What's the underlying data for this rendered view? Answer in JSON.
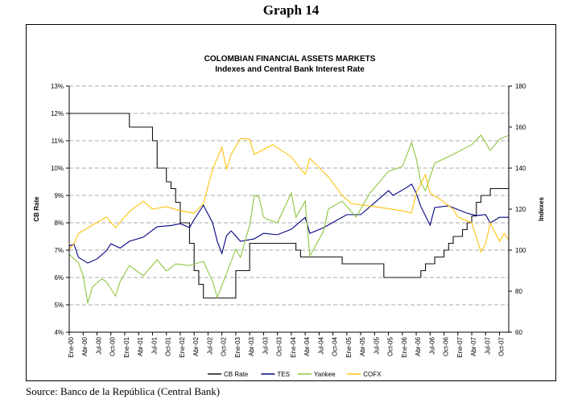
{
  "graph_label": "Graph 14",
  "source": "Source: Banco de la República (Central Bank)",
  "chart_data": {
    "type": "line",
    "title": "COLOMBIAN FINANCIAL ASSETS MARKETS",
    "subtitle": "Indexes and Central Bank Interest Rate",
    "ylabel": "CB Rate",
    "y2label": "Indexes",
    "ylim": [
      4,
      13
    ],
    "y2lim": [
      60,
      180
    ],
    "yticks": [
      "4%",
      "5%",
      "6%",
      "7%",
      "8%",
      "9%",
      "10%",
      "11%",
      "12%",
      "13%"
    ],
    "y2ticks": [
      "60",
      "80",
      "100",
      "120",
      "140",
      "160",
      "180"
    ],
    "xlim": [
      "2000-01",
      "2007-12"
    ],
    "xticks": [
      "Ene-00",
      "Abr-00",
      "Jul-00",
      "Oct-00",
      "Ene-01",
      "Abr-01",
      "Jul-01",
      "Oct-01",
      "Ene-02",
      "Abr-02",
      "Jul-02",
      "Oct-02",
      "Ene-03",
      "Abr-03",
      "Jul-03",
      "Oct-03",
      "Ene-04",
      "Abr-04",
      "Jul-04",
      "Oct-04",
      "Ene-05",
      "Abr-05",
      "Jul-05",
      "Oct-05",
      "Ene-06",
      "Abr-06",
      "Jul-06",
      "Oct-06",
      "Ene-07",
      "Abr-07",
      "Jul-07",
      "Oct-07"
    ],
    "grid": "horizontal dashed",
    "legend": "bottom",
    "series": [
      {
        "name": "CB Rate",
        "axis": "left",
        "step": true,
        "color": "#111111",
        "points": [
          [
            "2000-01",
            12
          ],
          [
            "2001-02",
            11.5
          ],
          [
            "2001-07",
            11
          ],
          [
            "2001-08",
            10
          ],
          [
            "2001-10",
            9.5
          ],
          [
            "2001-11",
            9.25
          ],
          [
            "2001-12",
            8.75
          ],
          [
            "2002-01",
            8
          ],
          [
            "2002-03",
            7.25
          ],
          [
            "2002-04",
            6.25
          ],
          [
            "2002-05",
            5.75
          ],
          [
            "2002-06",
            5.25
          ],
          [
            "2003-01",
            6.25
          ],
          [
            "2003-04",
            7.25
          ],
          [
            "2004-02",
            7
          ],
          [
            "2004-03",
            6.75
          ],
          [
            "2004-12",
            6.5
          ],
          [
            "2005-09",
            6
          ],
          [
            "2006-05",
            6.25
          ],
          [
            "2006-06",
            6.5
          ],
          [
            "2006-08",
            6.75
          ],
          [
            "2006-10",
            7
          ],
          [
            "2006-11",
            7.25
          ],
          [
            "2006-12",
            7.5
          ],
          [
            "2007-02",
            7.75
          ],
          [
            "2007-03",
            8
          ],
          [
            "2007-04",
            8.25
          ],
          [
            "2007-05",
            8.75
          ],
          [
            "2007-06",
            9
          ],
          [
            "2007-08",
            9.25
          ],
          [
            "2007-12",
            9.5
          ]
        ]
      },
      {
        "name": "TES",
        "axis": "right",
        "color": "#000080",
        "points": [
          [
            "2000-01",
            102
          ],
          [
            "2000-02",
            103
          ],
          [
            "2000-03",
            96.5
          ],
          [
            "2000-05",
            93.7
          ],
          [
            "2000-07",
            95.7
          ],
          [
            "2000-09",
            99.6
          ],
          [
            "2000-10",
            103.1
          ],
          [
            "2000-12",
            101
          ],
          [
            "2001-02",
            104.3
          ],
          [
            "2001-05",
            106.3
          ],
          [
            "2001-08",
            111.4
          ],
          [
            "2001-11",
            112
          ],
          [
            "2002-01",
            112.9
          ],
          [
            "2002-03",
            111
          ],
          [
            "2002-04",
            114.9
          ],
          [
            "2002-06",
            121.9
          ],
          [
            "2002-08",
            113.3
          ],
          [
            "2002-09",
            104.3
          ],
          [
            "2002-10",
            98.4
          ],
          [
            "2002-11",
            107
          ],
          [
            "2002-12",
            109.4
          ],
          [
            "2003-02",
            104.3
          ],
          [
            "2003-05",
            105.5
          ],
          [
            "2003-07",
            108.2
          ],
          [
            "2003-10",
            107.5
          ],
          [
            "2004-01",
            110.2
          ],
          [
            "2004-03",
            114
          ],
          [
            "2004-04",
            116
          ],
          [
            "2004-05",
            108.2
          ],
          [
            "2004-08",
            111
          ],
          [
            "2005-01",
            117.3
          ],
          [
            "2005-04",
            117.3
          ],
          [
            "2005-07",
            123.1
          ],
          [
            "2005-10",
            129
          ],
          [
            "2005-11",
            126.7
          ],
          [
            "2006-02",
            130.6
          ],
          [
            "2006-03",
            132.2
          ],
          [
            "2006-04",
            127.8
          ],
          [
            "2006-05",
            121.2
          ],
          [
            "2006-07",
            112.2
          ],
          [
            "2006-08",
            120.8
          ],
          [
            "2006-11",
            121.6
          ],
          [
            "2007-03",
            118
          ],
          [
            "2007-05",
            116.9
          ],
          [
            "2007-07",
            117.3
          ],
          [
            "2007-08",
            113.3
          ],
          [
            "2007-10",
            116
          ],
          [
            "2007-12",
            116
          ]
        ]
      },
      {
        "name": "Yankee",
        "axis": "right",
        "color": "#8DC63F",
        "points": [
          [
            "2000-01",
            98
          ],
          [
            "2000-03",
            93.7
          ],
          [
            "2000-04",
            87.5
          ],
          [
            "2000-05",
            74.1
          ],
          [
            "2000-06",
            82
          ],
          [
            "2000-08",
            86
          ],
          [
            "2000-09",
            84.7
          ],
          [
            "2000-11",
            77.6
          ],
          [
            "2000-12",
            84.7
          ],
          [
            "2001-02",
            92.5
          ],
          [
            "2001-05",
            87.5
          ],
          [
            "2001-08",
            95.3
          ],
          [
            "2001-10",
            89.8
          ],
          [
            "2001-12",
            93.3
          ],
          [
            "2002-03",
            92.5
          ],
          [
            "2002-06",
            94.5
          ],
          [
            "2002-08",
            84.7
          ],
          [
            "2002-09",
            76.9
          ],
          [
            "2002-11",
            88.6
          ],
          [
            "2003-01",
            100.4
          ],
          [
            "2003-02",
            96.5
          ],
          [
            "2003-04",
            112.2
          ],
          [
            "2003-05",
            126.7
          ],
          [
            "2003-06",
            126
          ],
          [
            "2003-07",
            116.1
          ],
          [
            "2003-08",
            114.9
          ],
          [
            "2003-10",
            113.3
          ],
          [
            "2004-01",
            127.8
          ],
          [
            "2004-02",
            116
          ],
          [
            "2004-04",
            123.9
          ],
          [
            "2004-05",
            97
          ],
          [
            "2004-08",
            109.4
          ],
          [
            "2004-09",
            120
          ],
          [
            "2004-12",
            123.9
          ],
          [
            "2005-03",
            116.1
          ],
          [
            "2005-06",
            127.8
          ],
          [
            "2005-10",
            138.4
          ],
          [
            "2006-01",
            140.8
          ],
          [
            "2006-03",
            152.5
          ],
          [
            "2006-04",
            144.7
          ],
          [
            "2006-05",
            132.9
          ],
          [
            "2006-06",
            129
          ],
          [
            "2006-08",
            142.4
          ],
          [
            "2006-12",
            146.7
          ],
          [
            "2007-04",
            151.4
          ],
          [
            "2007-06",
            156.1
          ],
          [
            "2007-08",
            148.6
          ],
          [
            "2007-10",
            154.1
          ],
          [
            "2007-12",
            156
          ]
        ]
      },
      {
        "name": "COFX",
        "axis": "right",
        "color": "#FFC20E",
        "points": [
          [
            "2000-01",
            100.4
          ],
          [
            "2000-02",
            103.1
          ],
          [
            "2000-03",
            108.2
          ],
          [
            "2000-06",
            112.2
          ],
          [
            "2000-09",
            116.1
          ],
          [
            "2000-11",
            111
          ],
          [
            "2001-02",
            118.8
          ],
          [
            "2001-05",
            123.9
          ],
          [
            "2001-07",
            120
          ],
          [
            "2001-10",
            121.2
          ],
          [
            "2002-01",
            119.2
          ],
          [
            "2002-04",
            118
          ],
          [
            "2002-06",
            122.7
          ],
          [
            "2002-08",
            139.6
          ],
          [
            "2002-10",
            150.2
          ],
          [
            "2002-11",
            139.6
          ],
          [
            "2002-12",
            146.7
          ],
          [
            "2003-02",
            154.5
          ],
          [
            "2003-04",
            154.1
          ],
          [
            "2003-05",
            146.7
          ],
          [
            "2003-09",
            151.4
          ],
          [
            "2004-01",
            145.5
          ],
          [
            "2004-03",
            139.6
          ],
          [
            "2004-04",
            137
          ],
          [
            "2004-05",
            144.7
          ],
          [
            "2004-09",
            135.7
          ],
          [
            "2004-12",
            126.7
          ],
          [
            "2005-02",
            122.7
          ],
          [
            "2005-07",
            121.2
          ],
          [
            "2006-01",
            119.2
          ],
          [
            "2006-03",
            118
          ],
          [
            "2006-04",
            127.8
          ],
          [
            "2006-06",
            136.9
          ],
          [
            "2006-07",
            127.8
          ],
          [
            "2006-09",
            125.1
          ],
          [
            "2006-12",
            120
          ],
          [
            "2007-01",
            116.1
          ],
          [
            "2007-04",
            113.3
          ],
          [
            "2007-06",
            99.2
          ],
          [
            "2007-07",
            103.1
          ],
          [
            "2007-08",
            113.3
          ],
          [
            "2007-10",
            104.3
          ],
          [
            "2007-11",
            108.2
          ],
          [
            "2007-12",
            105.1
          ]
        ]
      }
    ]
  }
}
